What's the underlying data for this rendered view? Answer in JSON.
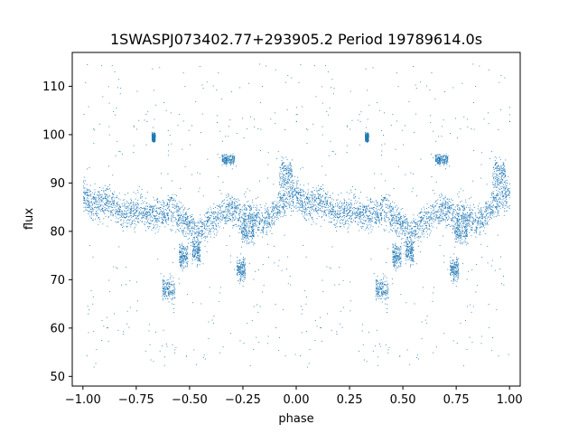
{
  "chart_data": {
    "type": "scatter",
    "title": "1SWASPJ073402.77+293905.2 Period 19789614.0s",
    "xlabel": "phase",
    "ylabel": "flux",
    "xlim": [
      -1.05,
      1.05
    ],
    "ylim": [
      48,
      117
    ],
    "xticks": [
      -1.0,
      -0.75,
      -0.5,
      -0.25,
      0.0,
      0.25,
      0.5,
      0.75,
      1.0
    ],
    "xtick_labels": [
      "−1.00",
      "−0.75",
      "−0.50",
      "−0.25",
      "0.00",
      "0.25",
      "0.50",
      "0.75",
      "1.00"
    ],
    "yticks": [
      50,
      60,
      70,
      80,
      90,
      100,
      110
    ],
    "ytick_labels": [
      "50",
      "60",
      "70",
      "80",
      "90",
      "100",
      "110"
    ],
    "grid": false,
    "point_color": "#1f77b4",
    "series": [
      {
        "phase_curve": [
          [
            0.0,
            88
          ],
          [
            0.03,
            86
          ],
          [
            0.06,
            85
          ],
          [
            0.09,
            86
          ],
          [
            0.12,
            86.5
          ],
          [
            0.15,
            85
          ],
          [
            0.18,
            84
          ],
          [
            0.21,
            83.5
          ],
          [
            0.24,
            84
          ],
          [
            0.27,
            84.5
          ],
          [
            0.3,
            83.5
          ],
          [
            0.33,
            83
          ],
          [
            0.36,
            83.5
          ],
          [
            0.39,
            84
          ],
          [
            0.42,
            84.5
          ],
          [
            0.45,
            83
          ],
          [
            0.48,
            82
          ],
          [
            0.51,
            81
          ],
          [
            0.54,
            80
          ],
          [
            0.57,
            81
          ],
          [
            0.6,
            82
          ],
          [
            0.63,
            83
          ],
          [
            0.66,
            84
          ],
          [
            0.69,
            85
          ],
          [
            0.72,
            84
          ],
          [
            0.75,
            83
          ],
          [
            0.78,
            84
          ],
          [
            0.81,
            83
          ],
          [
            0.84,
            82
          ],
          [
            0.87,
            83
          ],
          [
            0.9,
            84
          ],
          [
            0.93,
            86
          ],
          [
            0.96,
            87
          ],
          [
            1.0,
            88
          ]
        ],
        "clumps": [
          [
            0.4,
            68,
            0.03,
            3.0
          ],
          [
            0.47,
            75,
            0.02,
            3.0
          ],
          [
            0.53,
            76,
            0.02,
            3.0
          ],
          [
            0.68,
            95,
            0.03,
            1.2
          ],
          [
            0.74,
            72,
            0.02,
            3.0
          ],
          [
            0.77,
            80,
            0.03,
            3.0
          ],
          [
            0.33,
            99.5,
            0.008,
            1.2
          ],
          [
            0.95,
            92,
            0.03,
            4.0
          ]
        ]
      }
    ]
  }
}
